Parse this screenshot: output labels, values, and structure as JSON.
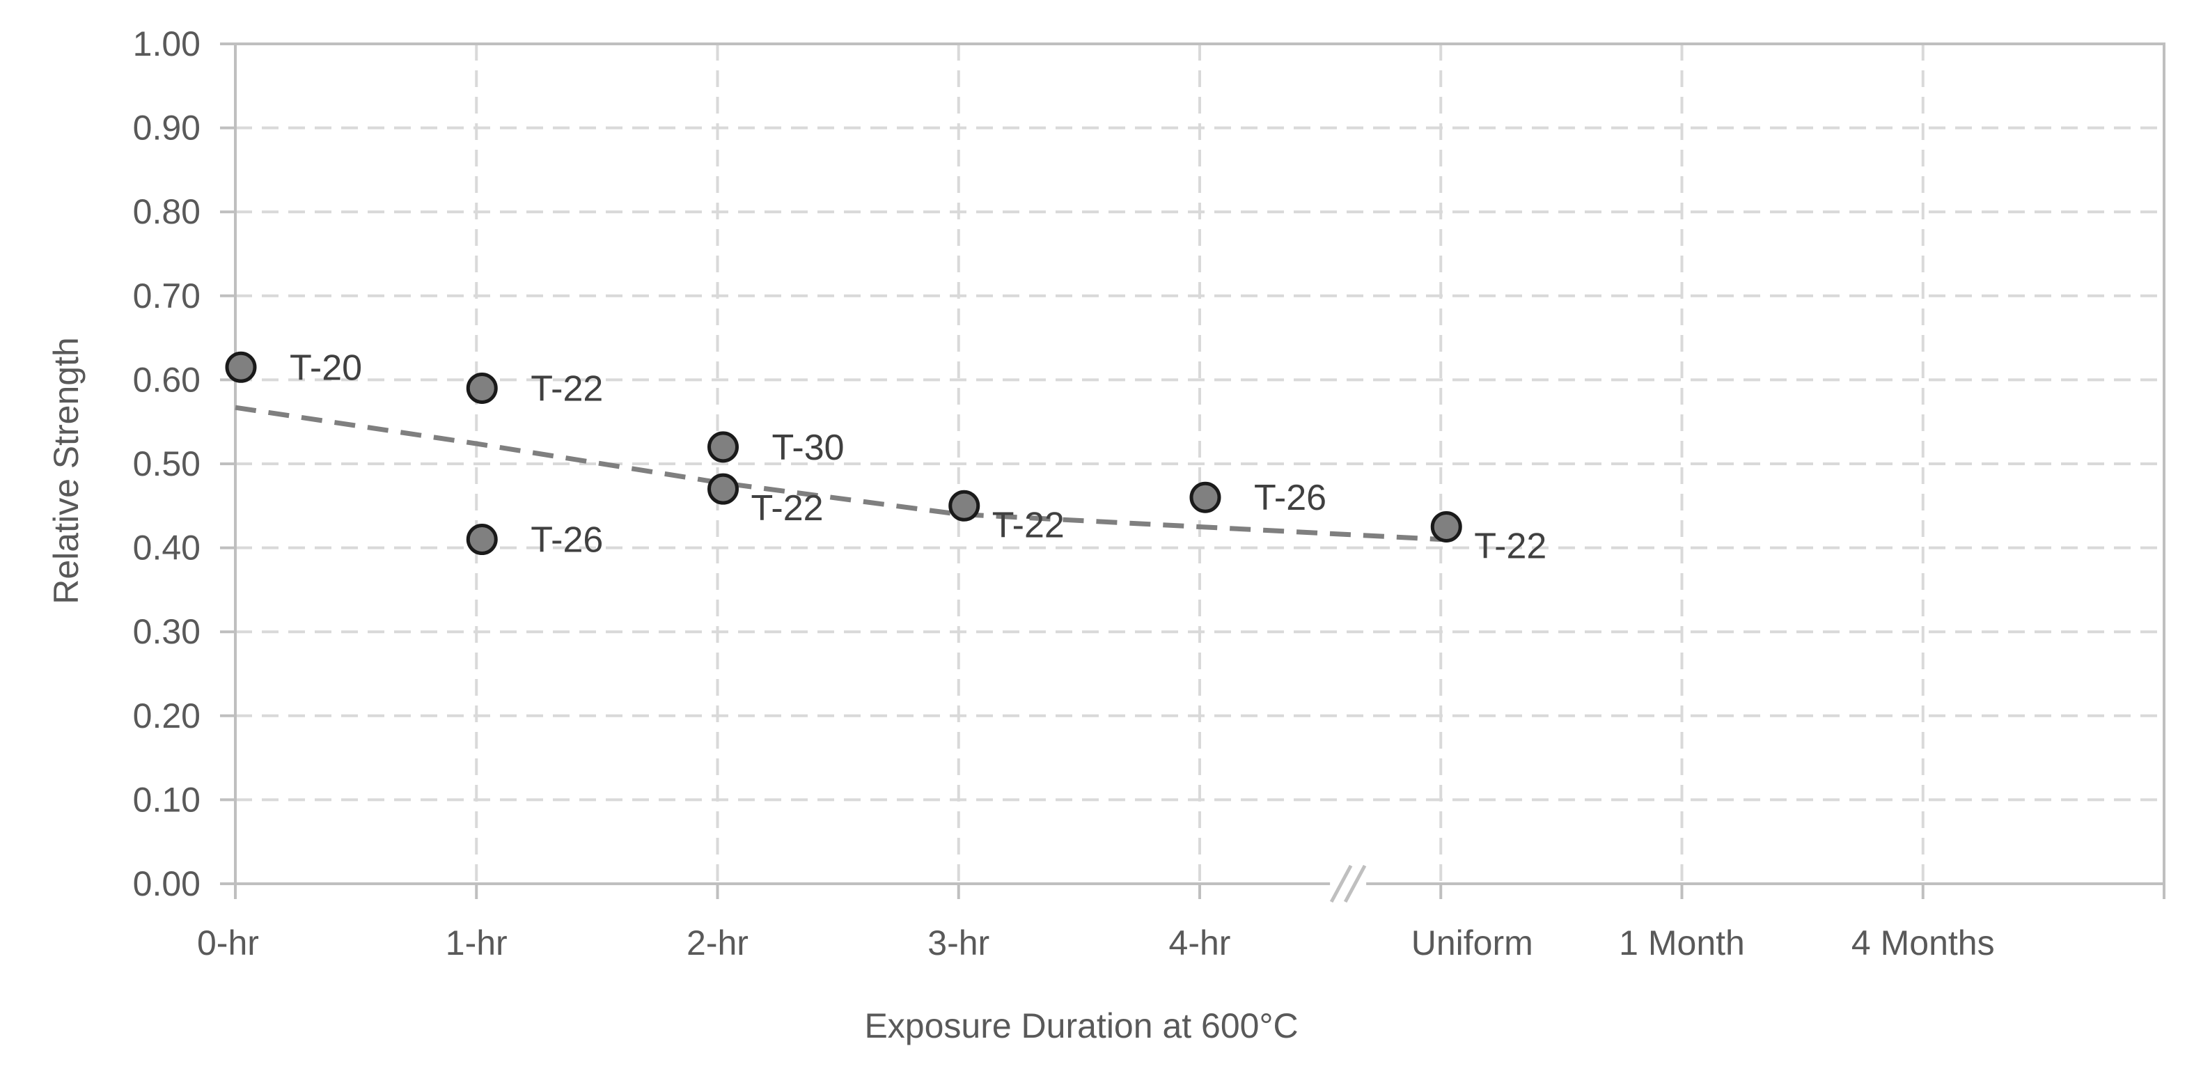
{
  "chart_data": {
    "type": "scatter",
    "title": "",
    "xlabel": "Exposure Duration at 600°C",
    "ylabel": "Relative Strength",
    "categories": [
      "0-hr",
      "1-hr",
      "2-hr",
      "3-hr",
      "4-hr",
      "Uniform",
      "1 Month",
      "4 Months"
    ],
    "ylim": [
      0,
      1.0
    ],
    "yticks": [
      "0.00",
      "0.10",
      "0.20",
      "0.30",
      "0.40",
      "0.50",
      "0.60",
      "0.70",
      "0.80",
      "0.90",
      "1.00"
    ],
    "grid": true,
    "axis_break_between": [
      "4-hr",
      "Uniform"
    ],
    "points": [
      {
        "x": "0-hr",
        "y": 0.615,
        "label": "T-20"
      },
      {
        "x": "1-hr",
        "y": 0.59,
        "label": "T-22"
      },
      {
        "x": "1-hr",
        "y": 0.41,
        "label": "T-26"
      },
      {
        "x": "2-hr",
        "y": 0.52,
        "label": "T-30"
      },
      {
        "x": "2-hr",
        "y": 0.47,
        "label": "T-22"
      },
      {
        "x": "3-hr",
        "y": 0.45,
        "label": "T-22"
      },
      {
        "x": "4-hr",
        "y": 0.46,
        "label": "T-26"
      },
      {
        "x": "Uniform",
        "y": 0.425,
        "label": "T-22"
      }
    ],
    "trendline": {
      "style": "dashed",
      "x": [
        "0-hr",
        "1-hr",
        "2-hr",
        "3-hr",
        "4-hr",
        "Uniform"
      ],
      "y": [
        0.567,
        0.524,
        0.478,
        0.44,
        0.425,
        0.41
      ]
    },
    "colors": {
      "marker_fill": "#808080",
      "marker_stroke": "#1a1a1a",
      "trendline": "#7f7f7f",
      "grid": "#d9d9d9",
      "axis": "#bfbfbf"
    }
  }
}
